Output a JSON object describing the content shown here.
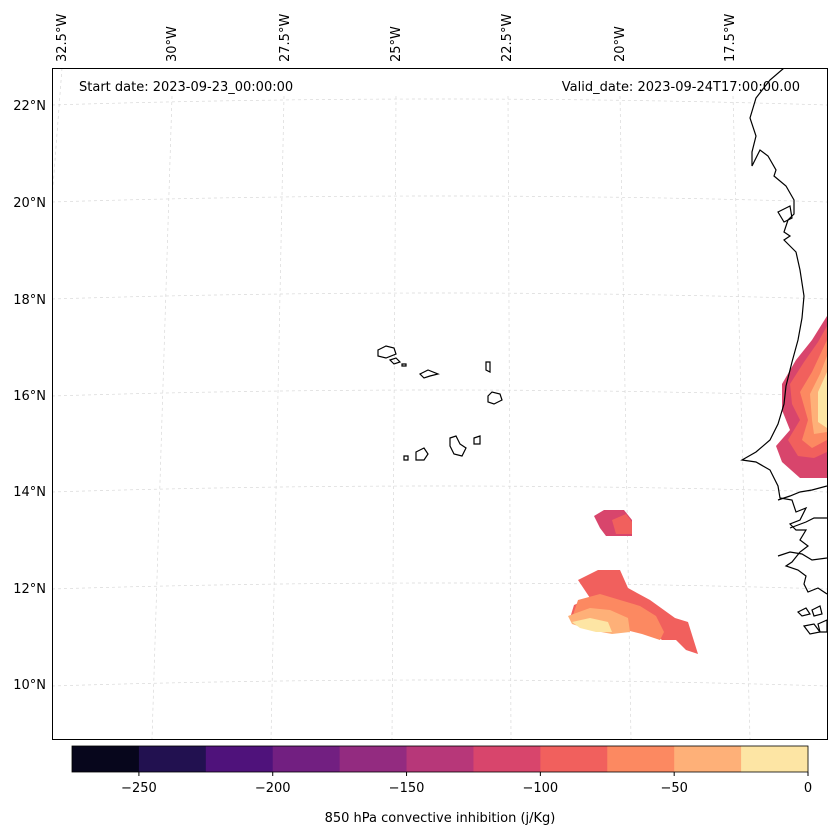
{
  "map": {
    "start_date_label": "Start date: 2023-09-23_00:00:00",
    "valid_date_label": "Valid_date: 2023-09-24T17:00:00.00",
    "lon_labels": [
      "32.5°W",
      "30°W",
      "27.5°W",
      "25°W",
      "22.5°W",
      "20°W",
      "17.5°W"
    ],
    "lat_labels": [
      "22°N",
      "20°N",
      "18°N",
      "16°N",
      "14°N",
      "12°N",
      "10°N"
    ]
  },
  "colorbar": {
    "label": "850 hPa convective inhibition (j/Kg)",
    "ticks": [
      "−250",
      "−200",
      "−150",
      "−100",
      "−50",
      "0"
    ],
    "tick_values": [
      -250,
      -200,
      -150,
      -100,
      -50,
      0
    ],
    "min": -275,
    "max": 0,
    "colors": [
      "#07061c",
      "#221150",
      "#4f127b",
      "#721f81",
      "#932b80",
      "#b73779",
      "#d8456c",
      "#f1605d",
      "#fc8961",
      "#feb078",
      "#fde5a4"
    ]
  },
  "colors": {
    "coastline": "#000000",
    "gridline": "#d8d8d8"
  }
}
